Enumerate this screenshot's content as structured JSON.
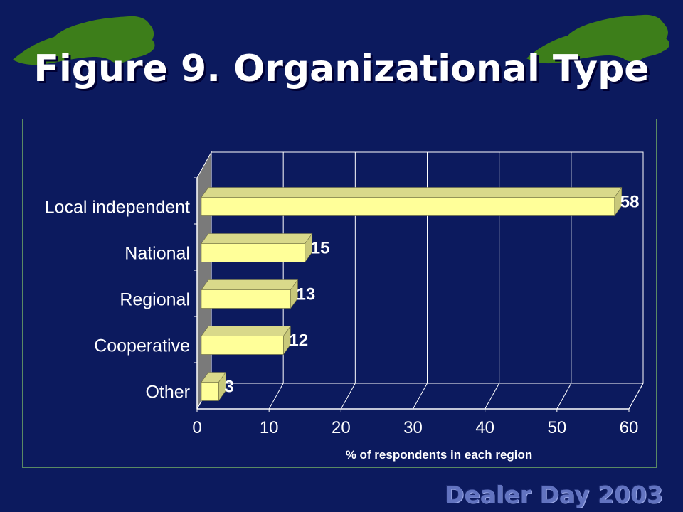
{
  "slide": {
    "title": "Figure 9.  Organizational Type",
    "footer": "Dealer Day 2003"
  },
  "colors": {
    "background": "#0c1a5e",
    "bar_face": "#ffff99",
    "bar_top": "#d9d98a",
    "bar_side": "#c8c87a",
    "map_green": "#3d7e1a"
  },
  "chart_data": {
    "type": "bar",
    "orientation": "horizontal",
    "categories": [
      "Local independent",
      "National",
      "Regional",
      "Cooperative",
      "Other"
    ],
    "values": [
      58,
      15,
      13,
      12,
      3
    ],
    "data_labels": [
      "58",
      "15",
      "13",
      "12",
      "3"
    ],
    "xlabel": "% of respondents in each region",
    "xlim": [
      0,
      60
    ],
    "xticks": [
      "0",
      "10",
      "20",
      "30",
      "40",
      "50",
      "60"
    ],
    "grid": true,
    "legend": "none"
  }
}
